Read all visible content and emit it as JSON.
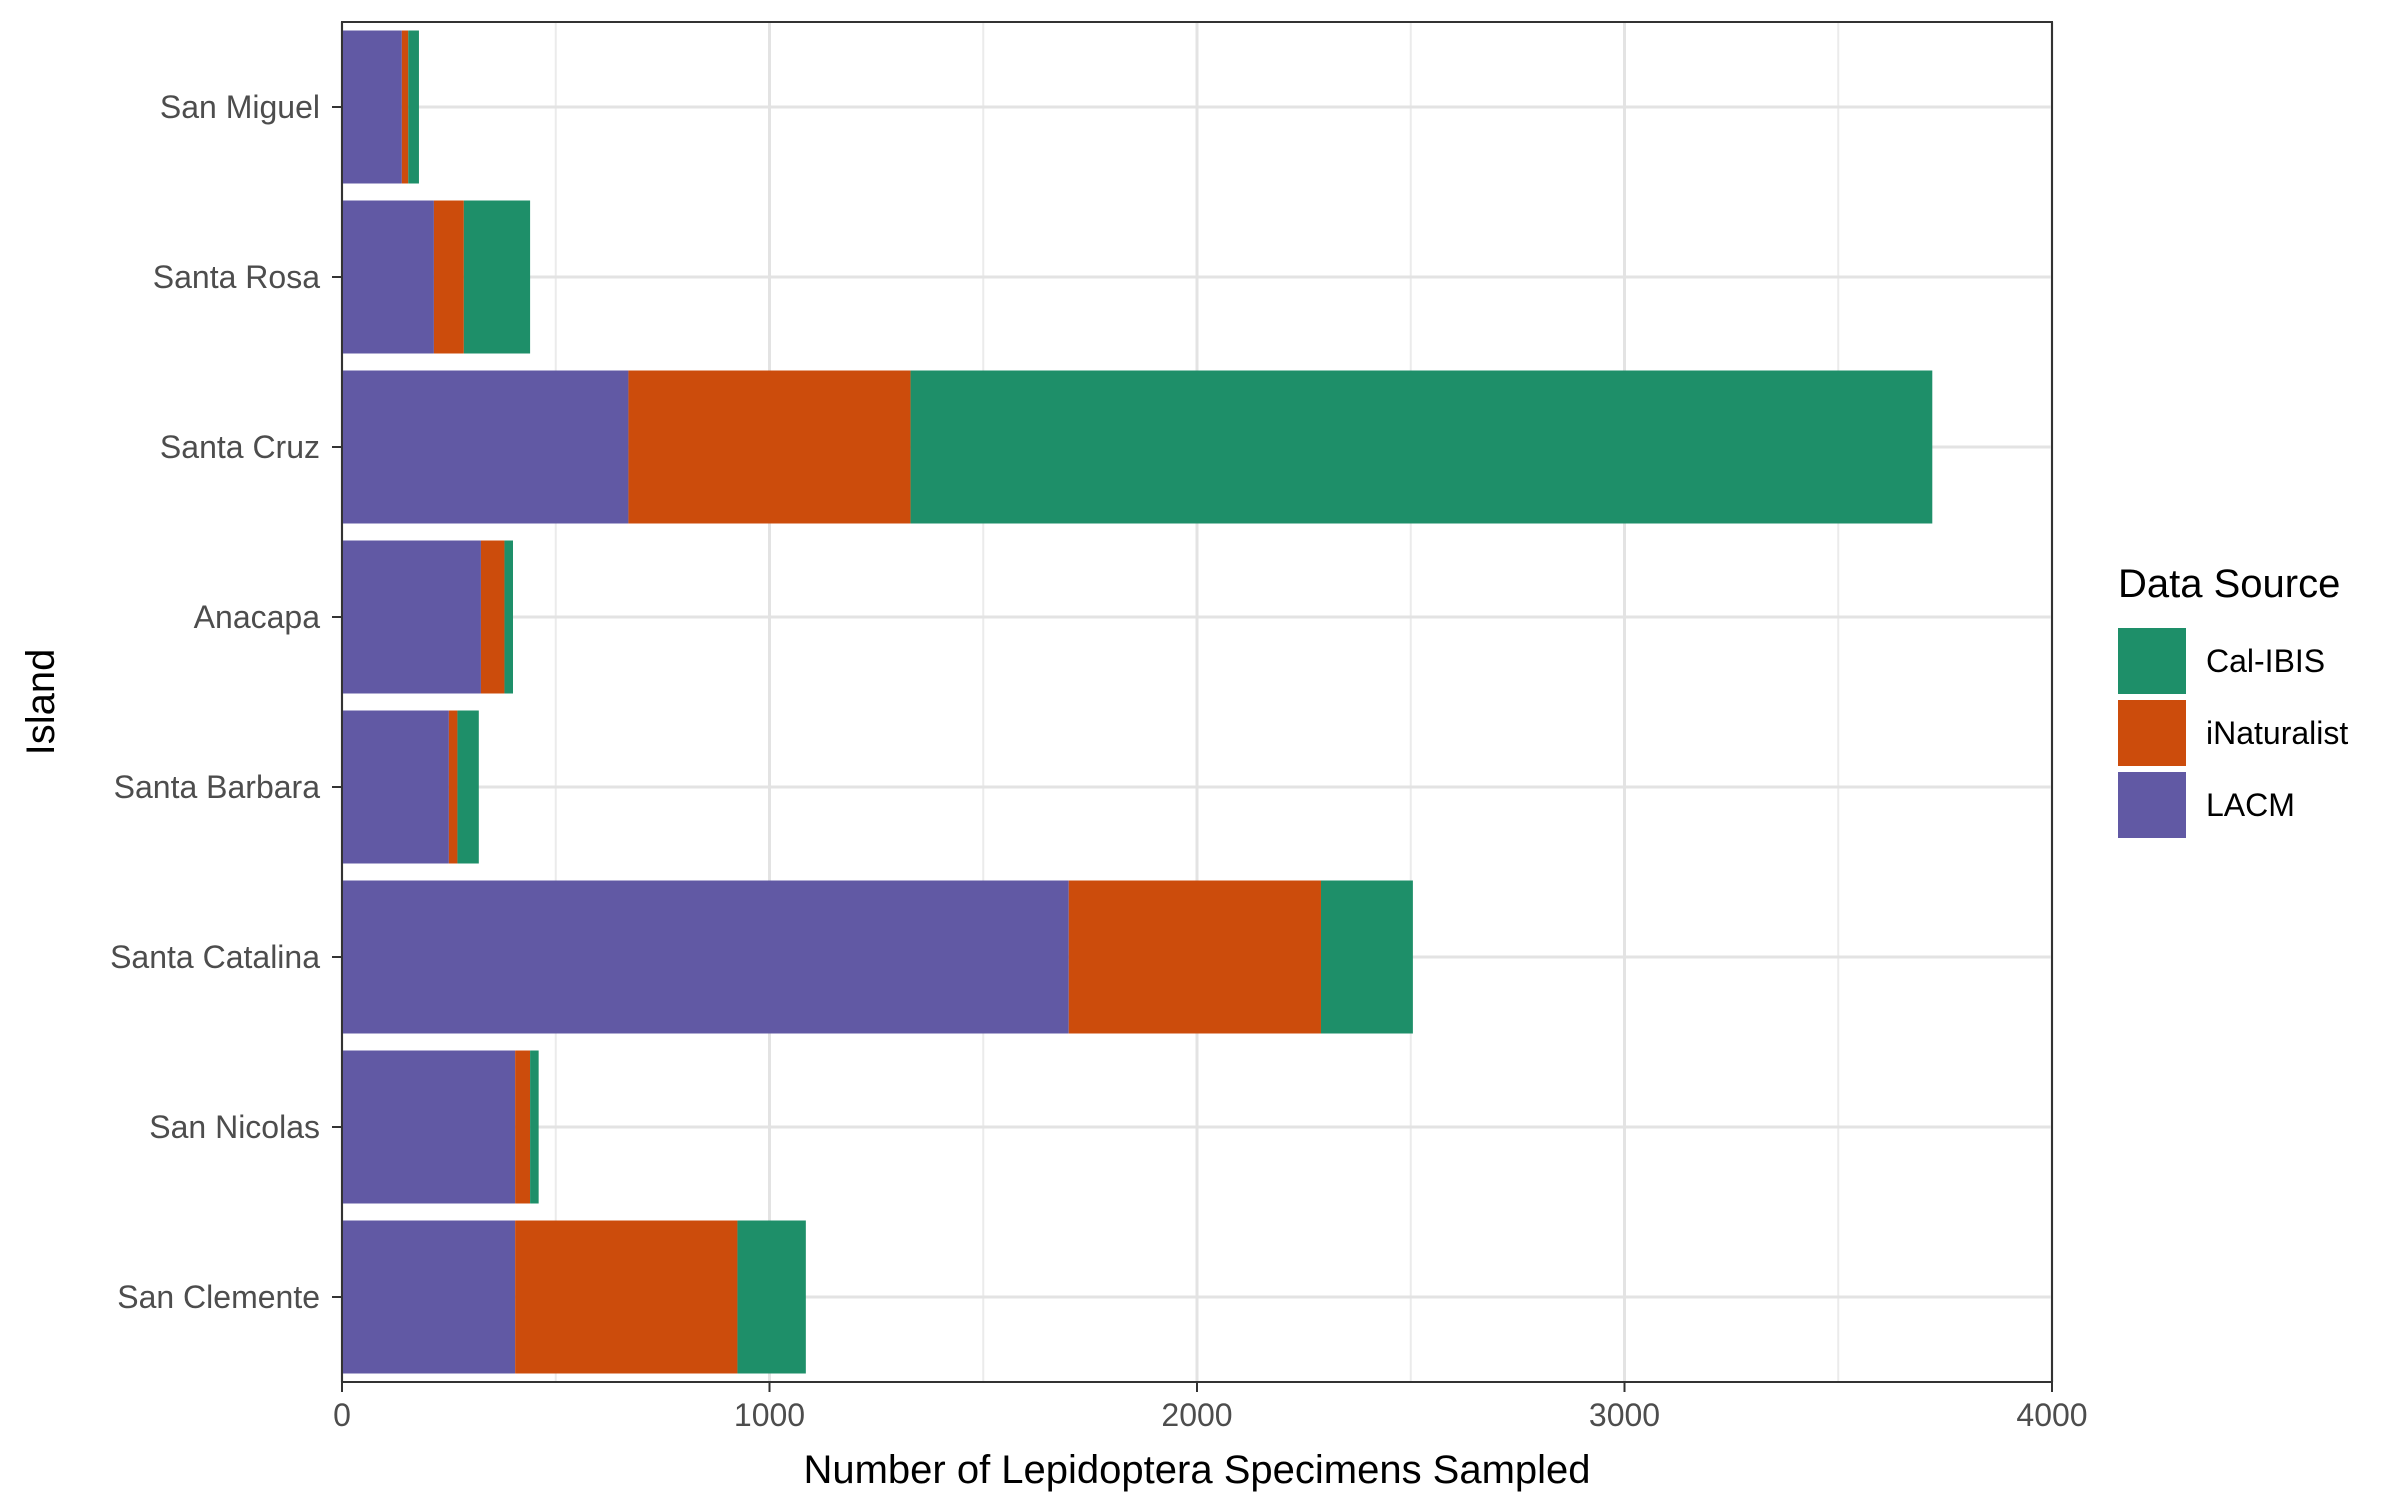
{
  "chart_data": {
    "type": "bar",
    "orientation": "horizontal",
    "stacked": true,
    "title": "",
    "xlabel": "Number of Lepidoptera Specimens Sampled",
    "ylabel": "Island",
    "xlim": [
      0,
      4000
    ],
    "x_ticks": [
      "0",
      "1000",
      "2000",
      "3000",
      "4000"
    ],
    "grid": true,
    "categories": [
      "San Miguel",
      "Santa Rosa",
      "Santa Cruz",
      "Anacapa",
      "Santa Barbara",
      "Santa Catalina",
      "San Nicolas",
      "San Clemente"
    ],
    "series": [
      {
        "name": "LACM",
        "color": "#6159A4",
        "values": [
          140,
          215,
          670,
          325,
          250,
          1700,
          405,
          405
        ]
      },
      {
        "name": "iNaturalist",
        "color": "#CC4C0C",
        "values": [
          15,
          70,
          660,
          55,
          20,
          590,
          35,
          520
        ]
      },
      {
        "name": "Cal-IBIS",
        "color": "#1E8F69",
        "values": [
          25,
          155,
          2390,
          20,
          50,
          215,
          20,
          160
        ]
      }
    ],
    "legend": {
      "title": "Data Source",
      "placement": "right",
      "entries": [
        "Cal-IBIS",
        "iNaturalist",
        "LACM"
      ]
    }
  }
}
